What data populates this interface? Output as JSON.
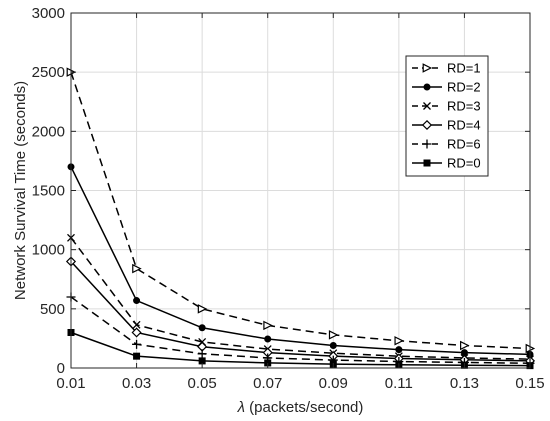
{
  "chart_data": {
    "type": "line",
    "xlabel_symbol": "λ",
    "xlabel_rest": " (packets/second)",
    "ylabel": "Network Survival Time (seconds)",
    "x": [
      0.01,
      0.03,
      0.05,
      0.07,
      0.09,
      0.11,
      0.13,
      0.15
    ],
    "xticks": [
      "0.01",
      "0.03",
      "0.05",
      "0.07",
      "0.09",
      "0.11",
      "0.13",
      "0.15"
    ],
    "yticks": [
      "0",
      "500",
      "1000",
      "1500",
      "2000",
      "2500",
      "3000"
    ],
    "xlim": [
      0.01,
      0.15
    ],
    "ylim": [
      0,
      3000
    ],
    "grid": true,
    "legend_position": "top-right",
    "series": [
      {
        "name": "RD=1",
        "marker": "triangle-right",
        "dash": "dashed",
        "color": "#000000",
        "values": [
          2500,
          840,
          500,
          360,
          280,
          230,
          190,
          165
        ]
      },
      {
        "name": "RD=2",
        "marker": "filled-circle",
        "dash": "solid",
        "color": "#000000",
        "values": [
          1700,
          570,
          340,
          245,
          190,
          155,
          130,
          115
        ]
      },
      {
        "name": "RD=3",
        "marker": "x",
        "dash": "dashed",
        "color": "#000000",
        "values": [
          1100,
          365,
          220,
          160,
          125,
          100,
          85,
          75
        ]
      },
      {
        "name": "RD=4",
        "marker": "diamond",
        "dash": "solid",
        "color": "#000000",
        "values": [
          900,
          300,
          180,
          130,
          100,
          80,
          70,
          60
        ]
      },
      {
        "name": "RD=6",
        "marker": "plus",
        "dash": "dashed",
        "color": "#000000",
        "values": [
          600,
          200,
          120,
          85,
          67,
          55,
          47,
          40
        ]
      },
      {
        "name": "RD=0",
        "marker": "filled-square",
        "dash": "solid",
        "color": "#000000",
        "values": [
          300,
          100,
          60,
          43,
          33,
          27,
          23,
          20
        ]
      }
    ]
  }
}
